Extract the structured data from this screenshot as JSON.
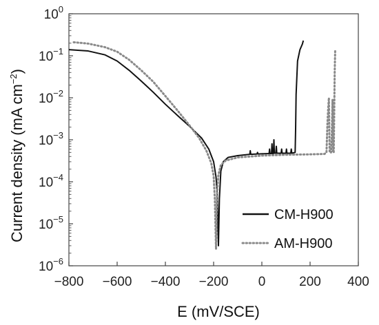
{
  "chart_data": {
    "type": "line",
    "xlabel": "E (mV/SCE)",
    "ylabel": "Current density (mA cm⁻²)",
    "ylabel_parts": {
      "main": "Current density (mA cm",
      "sup": "−2",
      "close": ")"
    },
    "xlim": [
      -800,
      400
    ],
    "ylim": [
      1e-06,
      1
    ],
    "y_scale": "log",
    "grid": false,
    "legend_position": "bottom-right",
    "x_ticks": [
      -800,
      -600,
      -400,
      -200,
      0,
      200,
      400
    ],
    "x_tick_labels": [
      "−800",
      "−600",
      "−400",
      "−200",
      "0",
      "200",
      "400"
    ],
    "y_ticks": [
      0,
      -1,
      -2,
      -3,
      -4,
      -5,
      -6
    ],
    "y_tick_labels": [
      {
        "base": "10",
        "exp": "0"
      },
      {
        "base": "10",
        "exp": "−1"
      },
      {
        "base": "10",
        "exp": "−2"
      },
      {
        "base": "10",
        "exp": "−3"
      },
      {
        "base": "10",
        "exp": "−4"
      },
      {
        "base": "10",
        "exp": "−5"
      },
      {
        "base": "10",
        "exp": "−6"
      }
    ],
    "series": [
      {
        "name": "CM-H900",
        "color": "#111111",
        "style": "solid",
        "points": [
          [
            -800,
            0.14
          ],
          [
            -720,
            0.13
          ],
          [
            -650,
            0.105
          ],
          [
            -600,
            0.075
          ],
          [
            -550,
            0.045
          ],
          [
            -500,
            0.025
          ],
          [
            -450,
            0.0135
          ],
          [
            -400,
            0.007
          ],
          [
            -350,
            0.0038
          ],
          [
            -300,
            0.0021
          ],
          [
            -250,
            0.0011
          ],
          [
            -220,
            0.0006
          ],
          [
            -200,
            0.0003
          ],
          [
            -190,
            0.00013
          ],
          [
            -185,
            5e-05
          ],
          [
            -180,
            3e-06
          ],
          [
            -176,
            4e-05
          ],
          [
            -170,
            0.00018
          ],
          [
            -160,
            0.0003
          ],
          [
            -140,
            0.00038
          ],
          [
            -100,
            0.00042
          ],
          [
            -50,
            0.00045
          ],
          [
            -48,
            0.00055
          ],
          [
            -46,
            0.00045
          ],
          [
            -20,
            0.00046
          ],
          [
            -18,
            0.0005
          ],
          [
            -16,
            0.00046
          ],
          [
            30,
            0.00047
          ],
          [
            32,
            0.0006
          ],
          [
            34,
            0.00047
          ],
          [
            40,
            0.00047
          ],
          [
            42,
            0.0008
          ],
          [
            44,
            0.00047
          ],
          [
            48,
            0.00047
          ],
          [
            50,
            0.001
          ],
          [
            52,
            0.00048
          ],
          [
            58,
            0.00048
          ],
          [
            60,
            0.0007
          ],
          [
            62,
            0.00048
          ],
          [
            80,
            0.00048
          ],
          [
            82,
            0.0006
          ],
          [
            84,
            0.00048
          ],
          [
            100,
            0.00048
          ],
          [
            102,
            0.0006
          ],
          [
            104,
            0.00048
          ],
          [
            120,
            0.00048
          ],
          [
            122,
            0.0006
          ],
          [
            124,
            0.00048
          ],
          [
            138,
            0.0005
          ],
          [
            140,
            0.0018
          ],
          [
            142,
            0.012
          ],
          [
            148,
            0.075
          ],
          [
            158,
            0.14
          ],
          [
            168,
            0.19
          ],
          [
            172,
            0.23
          ]
        ]
      },
      {
        "name": "AM-H900",
        "color": "#8a8a8a",
        "style": "dotted",
        "points": [
          [
            -780,
            0.21
          ],
          [
            -720,
            0.195
          ],
          [
            -650,
            0.16
          ],
          [
            -600,
            0.125
          ],
          [
            -550,
            0.08
          ],
          [
            -500,
            0.045
          ],
          [
            -450,
            0.024
          ],
          [
            -400,
            0.011
          ],
          [
            -350,
            0.005
          ],
          [
            -300,
            0.0022
          ],
          [
            -260,
            0.0011
          ],
          [
            -230,
            0.00055
          ],
          [
            -210,
            0.00028
          ],
          [
            -200,
            0.00014
          ],
          [
            -195,
            4e-05
          ],
          [
            -190,
            2.5e-06
          ],
          [
            -186,
            5e-05
          ],
          [
            -180,
            0.00015
          ],
          [
            -170,
            0.00025
          ],
          [
            -150,
            0.00032
          ],
          [
            -100,
            0.00038
          ],
          [
            0,
            0.00042
          ],
          [
            100,
            0.00044
          ],
          [
            200,
            0.00045
          ],
          [
            260,
            0.00046
          ],
          [
            268,
            0.0005
          ],
          [
            270,
            0.0011
          ],
          [
            272,
            0.0025
          ],
          [
            275,
            0.0055
          ],
          [
            278,
            0.01
          ],
          [
            281,
            0.0005
          ],
          [
            287,
            0.0005
          ],
          [
            290,
            0.0013
          ],
          [
            293,
            0.009
          ],
          [
            295,
            0.0005
          ],
          [
            298,
            0.0005
          ],
          [
            300,
            0.004
          ],
          [
            302,
            0.04
          ],
          [
            304,
            0.13
          ]
        ]
      }
    ]
  }
}
